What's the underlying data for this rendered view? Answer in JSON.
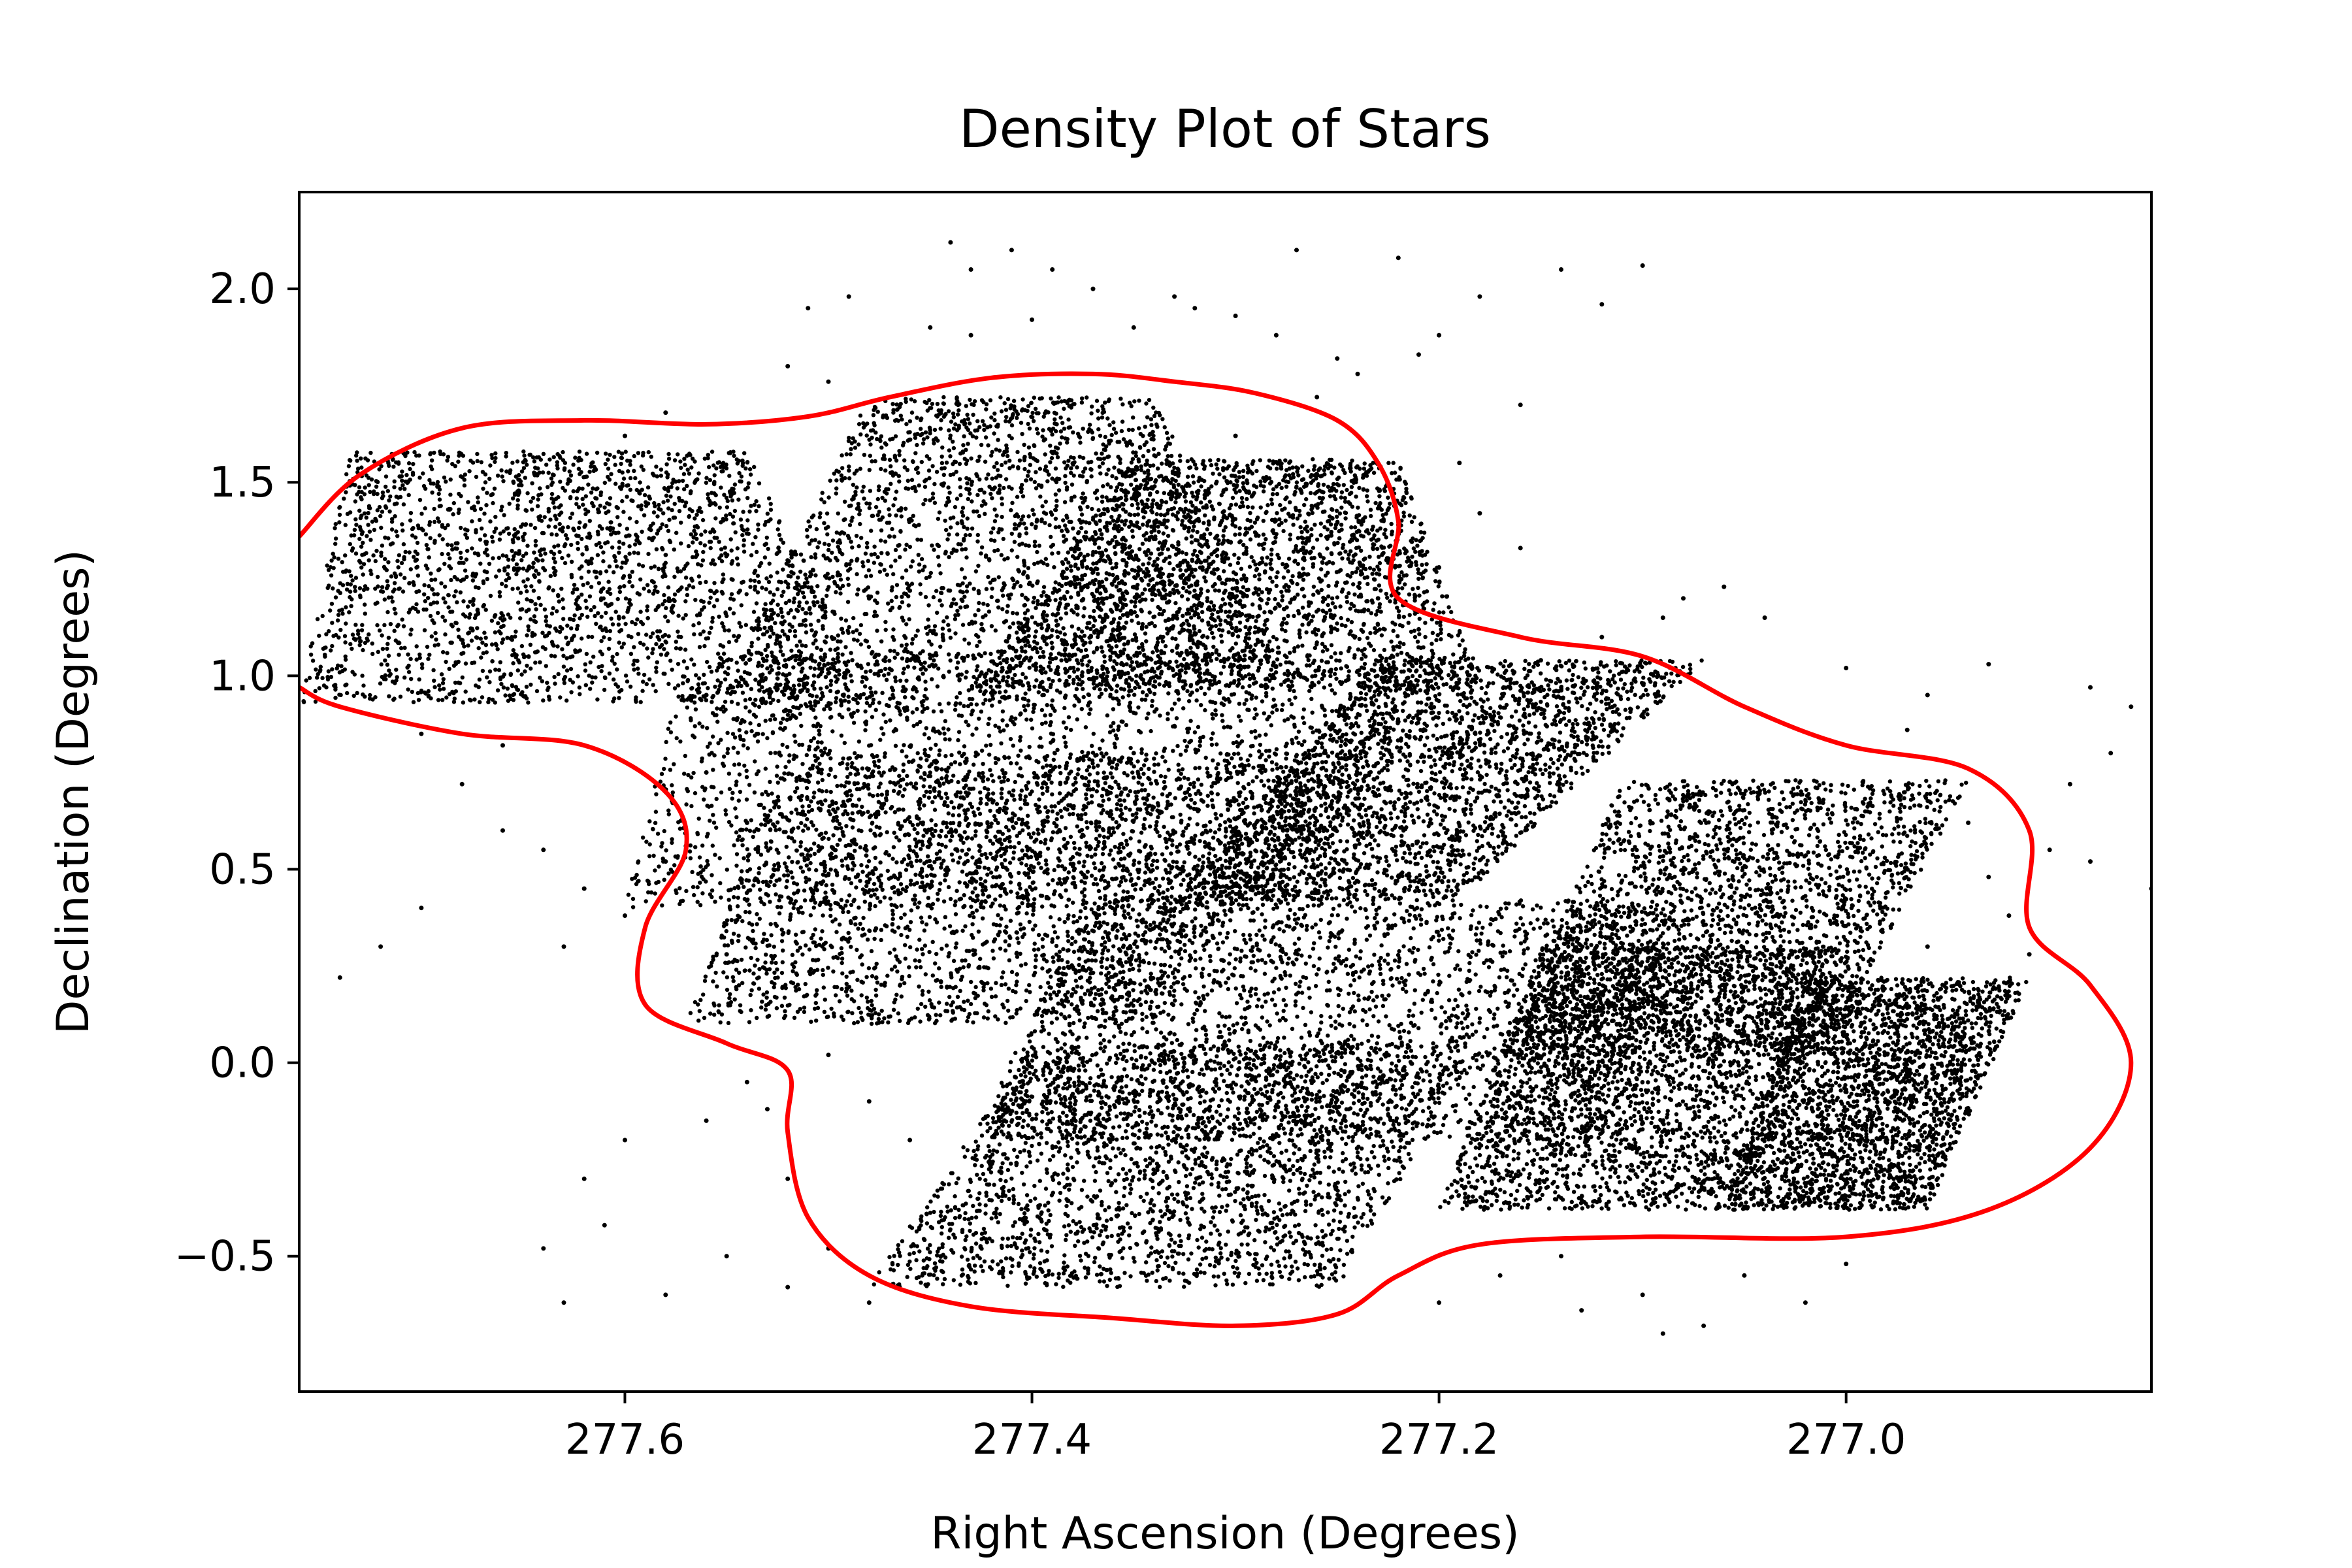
{
  "chart_data": {
    "type": "scatter",
    "title": "Density Plot of Stars",
    "xlabel": "Right Ascension (Degrees)",
    "ylabel": "Declination (Degrees)",
    "xlim": [
      277.76,
      276.85
    ],
    "ylim": [
      -0.85,
      2.25
    ],
    "x_inverted": true,
    "xticks": [
      {
        "value": 277.6,
        "label": "277.6"
      },
      {
        "value": 277.4,
        "label": "277.4"
      },
      {
        "value": 277.2,
        "label": "277.2"
      },
      {
        "value": 277.0,
        "label": "277.0"
      }
    ],
    "yticks": [
      {
        "value": -0.5,
        "label": "−0.5"
      },
      {
        "value": 0.0,
        "label": "0.0"
      },
      {
        "value": 0.5,
        "label": "0.5"
      },
      {
        "value": 1.0,
        "label": "1.0"
      },
      {
        "value": 1.5,
        "label": "1.5"
      },
      {
        "value": 2.0,
        "label": "2.0"
      }
    ],
    "grid": false,
    "point_color": "#000000",
    "contour_color": "#ff0000",
    "dense_regions": [
      [
        [
          277.735,
          1.58
        ],
        [
          277.54,
          1.58
        ],
        [
          277.48,
          0.93
        ],
        [
          277.76,
          0.93
        ]
      ],
      [
        [
          277.48,
          1.72
        ],
        [
          277.34,
          1.72
        ],
        [
          277.27,
          0.93
        ],
        [
          277.56,
          0.88
        ]
      ],
      [
        [
          277.35,
          1.56
        ],
        [
          277.22,
          1.56
        ],
        [
          277.18,
          0.97
        ],
        [
          277.43,
          0.97
        ]
      ],
      [
        [
          277.57,
          1.06
        ],
        [
          277.18,
          1.06
        ],
        [
          277.28,
          0.4
        ],
        [
          277.6,
          0.4
        ]
      ],
      [
        [
          277.52,
          0.8
        ],
        [
          277.24,
          0.8
        ],
        [
          277.34,
          0.1
        ],
        [
          277.57,
          0.1
        ]
      ],
      [
        [
          277.23,
          1.04
        ],
        [
          277.07,
          1.04
        ],
        [
          277.19,
          0.42
        ],
        [
          277.33,
          0.42
        ]
      ],
      [
        [
          277.37,
          0.42
        ],
        [
          277.08,
          0.42
        ],
        [
          277.12,
          -0.2
        ],
        [
          277.43,
          -0.2
        ]
      ],
      [
        [
          277.4,
          0.05
        ],
        [
          277.18,
          0.05
        ],
        [
          277.25,
          -0.58
        ],
        [
          277.48,
          -0.58
        ]
      ],
      [
        [
          277.11,
          0.73
        ],
        [
          276.94,
          0.73
        ],
        [
          277.01,
          0.02
        ],
        [
          277.17,
          0.02
        ]
      ],
      [
        [
          277.15,
          0.3
        ],
        [
          277.0,
          0.3
        ],
        [
          277.05,
          -0.38
        ],
        [
          277.2,
          -0.38
        ]
      ],
      [
        [
          277.02,
          0.22
        ],
        [
          276.91,
          0.22
        ],
        [
          276.96,
          -0.38
        ],
        [
          277.06,
          -0.38
        ]
      ]
    ],
    "sparse_points": [
      [
        277.49,
        1.98
      ],
      [
        277.51,
        1.95
      ],
      [
        277.44,
        2.12
      ],
      [
        277.43,
        2.05
      ],
      [
        277.41,
        2.1
      ],
      [
        277.39,
        2.05
      ],
      [
        277.37,
        2.0
      ],
      [
        277.33,
        1.98
      ],
      [
        277.3,
        1.93
      ],
      [
        277.27,
        2.1
      ],
      [
        277.22,
        2.08
      ],
      [
        277.18,
        1.98
      ],
      [
        277.14,
        2.05
      ],
      [
        277.1,
        2.06
      ],
      [
        277.12,
        1.96
      ],
      [
        277.21,
        1.83
      ],
      [
        277.24,
        1.78
      ],
      [
        277.32,
        1.95
      ],
      [
        277.28,
        1.88
      ],
      [
        277.35,
        1.9
      ],
      [
        277.52,
        1.8
      ],
      [
        277.5,
        1.76
      ],
      [
        277.45,
        1.9
      ],
      [
        277.43,
        1.88
      ],
      [
        277.4,
        1.92
      ],
      [
        277.2,
        1.88
      ],
      [
        277.16,
        1.7
      ],
      [
        277.19,
        1.55
      ],
      [
        277.18,
        1.42
      ],
      [
        277.16,
        1.33
      ],
      [
        277.2,
        1.28
      ],
      [
        277.12,
        1.1
      ],
      [
        277.08,
        1.2
      ],
      [
        277.06,
        1.23
      ],
      [
        277.04,
        1.15
      ],
      [
        277.0,
        1.02
      ],
      [
        276.96,
        0.95
      ],
      [
        276.93,
        1.03
      ],
      [
        276.88,
        0.97
      ],
      [
        276.86,
        0.92
      ],
      [
        276.89,
        0.72
      ],
      [
        276.87,
        0.8
      ],
      [
        276.9,
        0.55
      ],
      [
        276.92,
        0.38
      ],
      [
        276.85,
        0.45
      ],
      [
        277.68,
        0.72
      ],
      [
        277.66,
        0.6
      ],
      [
        277.64,
        0.55
      ],
      [
        277.62,
        0.45
      ],
      [
        277.7,
        0.4
      ],
      [
        277.72,
        0.3
      ],
      [
        277.74,
        0.22
      ],
      [
        277.6,
        0.38
      ],
      [
        277.58,
        0.52
      ],
      [
        277.63,
        0.3
      ],
      [
        277.58,
        0.7
      ],
      [
        277.57,
        0.56
      ],
      [
        277.55,
        0.28
      ],
      [
        277.54,
        -0.05
      ],
      [
        277.56,
        -0.15
      ],
      [
        277.6,
        -0.2
      ],
      [
        277.62,
        -0.3
      ],
      [
        277.61,
        -0.42
      ],
      [
        277.64,
        -0.48
      ],
      [
        277.63,
        -0.62
      ],
      [
        277.58,
        -0.6
      ],
      [
        277.55,
        -0.5
      ],
      [
        277.52,
        -0.58
      ],
      [
        277.5,
        -0.48
      ],
      [
        277.48,
        -0.62
      ],
      [
        277.52,
        -0.3
      ],
      [
        277.53,
        -0.12
      ],
      [
        277.5,
        0.02
      ],
      [
        277.48,
        -0.1
      ],
      [
        277.46,
        -0.2
      ],
      [
        277.2,
        -0.62
      ],
      [
        277.17,
        -0.55
      ],
      [
        277.14,
        -0.5
      ],
      [
        277.1,
        -0.6
      ],
      [
        277.07,
        -0.68
      ],
      [
        277.05,
        -0.55
      ],
      [
        277.02,
        -0.62
      ],
      [
        277.0,
        -0.52
      ],
      [
        277.09,
        -0.7
      ],
      [
        277.13,
        -0.64
      ],
      [
        277.25,
        1.82
      ],
      [
        277.26,
        1.72
      ],
      [
        277.3,
        1.62
      ],
      [
        277.58,
        1.68
      ],
      [
        277.6,
        1.62
      ],
      [
        277.66,
        0.82
      ],
      [
        277.7,
        0.85
      ],
      [
        277.62,
        0.82
      ],
      [
        277.56,
        0.75
      ],
      [
        277.54,
        0.62
      ],
      [
        277.23,
        1.2
      ],
      [
        277.21,
        1.12
      ],
      [
        277.15,
        1.04
      ],
      [
        277.09,
        1.15
      ],
      [
        276.97,
        0.86
      ],
      [
        276.94,
        0.62
      ],
      [
        276.93,
        0.48
      ],
      [
        276.96,
        0.3
      ],
      [
        276.91,
        0.28
      ],
      [
        276.88,
        0.52
      ],
      [
        277.56,
        0.95
      ],
      [
        277.52,
        1.1
      ],
      [
        277.46,
        1.22
      ],
      [
        277.48,
        1.2
      ],
      [
        277.47,
        1.36
      ],
      [
        277.35,
        0.8
      ],
      [
        277.33,
        0.87
      ],
      [
        277.3,
        0.6
      ],
      [
        277.28,
        0.55
      ],
      [
        277.1,
        0.9
      ]
    ],
    "contour": [
      [
        277.76,
        1.36
      ],
      [
        277.73,
        1.52
      ],
      [
        277.68,
        1.64
      ],
      [
        277.62,
        1.66
      ],
      [
        277.56,
        1.65
      ],
      [
        277.51,
        1.67
      ],
      [
        277.47,
        1.72
      ],
      [
        277.42,
        1.77
      ],
      [
        277.37,
        1.78
      ],
      [
        277.33,
        1.76
      ],
      [
        277.29,
        1.73
      ],
      [
        277.25,
        1.66
      ],
      [
        277.23,
        1.55
      ],
      [
        277.22,
        1.4
      ],
      [
        277.22,
        1.2
      ],
      [
        277.16,
        1.1
      ],
      [
        277.1,
        1.05
      ],
      [
        277.05,
        0.92
      ],
      [
        277.0,
        0.82
      ],
      [
        276.94,
        0.76
      ],
      [
        276.91,
        0.6
      ],
      [
        276.91,
        0.35
      ],
      [
        276.88,
        0.2
      ],
      [
        276.86,
        0.0
      ],
      [
        276.88,
        -0.22
      ],
      [
        276.93,
        -0.38
      ],
      [
        277.0,
        -0.45
      ],
      [
        277.1,
        -0.45
      ],
      [
        277.18,
        -0.47
      ],
      [
        277.22,
        -0.55
      ],
      [
        277.25,
        -0.65
      ],
      [
        277.3,
        -0.68
      ],
      [
        277.36,
        -0.66
      ],
      [
        277.43,
        -0.63
      ],
      [
        277.48,
        -0.55
      ],
      [
        277.51,
        -0.4
      ],
      [
        277.52,
        -0.18
      ],
      [
        277.52,
        -0.02
      ],
      [
        277.55,
        0.05
      ],
      [
        277.59,
        0.15
      ],
      [
        277.59,
        0.35
      ],
      [
        277.57,
        0.55
      ],
      [
        277.58,
        0.7
      ],
      [
        277.62,
        0.82
      ],
      [
        277.68,
        0.85
      ],
      [
        277.74,
        0.92
      ],
      [
        277.76,
        0.97
      ]
    ]
  }
}
